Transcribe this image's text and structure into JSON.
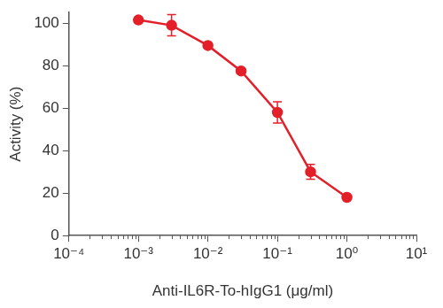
{
  "chart_data": {
    "type": "line",
    "x_label": "Anti-IL6R-To-hIgG1 (μg/ml)",
    "y_label": "Activity (%)",
    "x": [
      0.001,
      0.003,
      0.01,
      0.03,
      0.1,
      0.3,
      1
    ],
    "values": [
      101.5,
      99,
      89.5,
      77.5,
      58,
      30,
      18
    ],
    "errors": [
      1,
      5,
      1,
      1,
      5,
      3.5,
      1
    ],
    "color": "#e3202a",
    "marker": "circle",
    "log": "x",
    "grid": false,
    "xlim": [
      0.0001,
      10
    ],
    "xticks": [
      {
        "value": 0.0001,
        "label": "10⁻⁴"
      },
      {
        "value": 0.001,
        "label": "10⁻³"
      },
      {
        "value": 0.01,
        "label": "10⁻²"
      },
      {
        "value": 0.1,
        "label": "10⁻¹"
      },
      {
        "value": 1,
        "label": "10⁰"
      },
      {
        "value": 10,
        "label": "10¹"
      }
    ],
    "ylim": [
      0,
      105
    ],
    "yticks": [
      0,
      20,
      40,
      60,
      80,
      100
    ]
  }
}
